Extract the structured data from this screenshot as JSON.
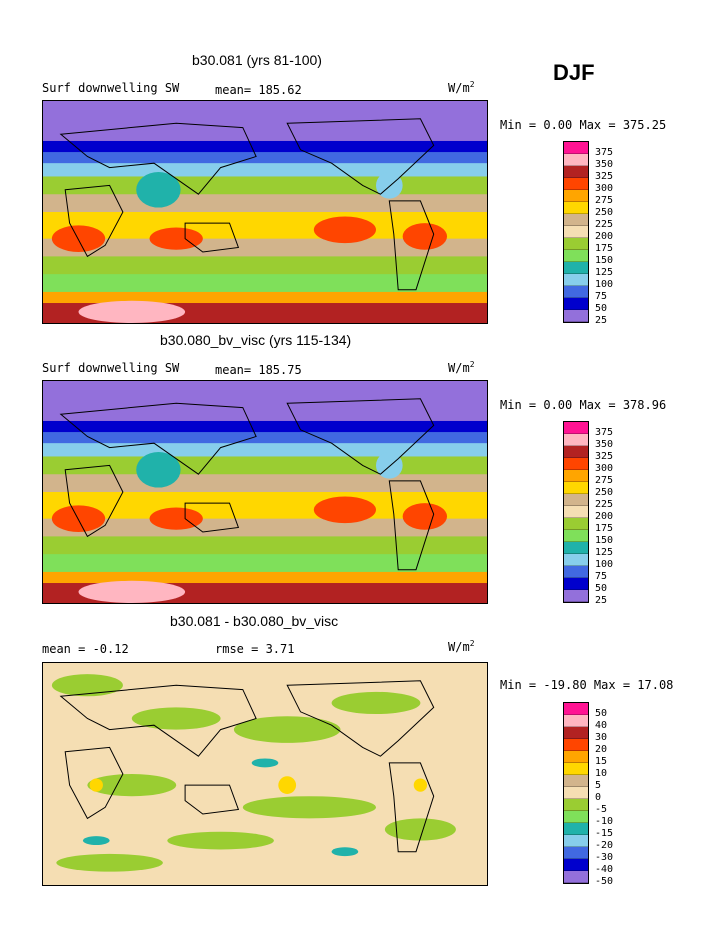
{
  "season": "DJF",
  "units_symbol": "W/m",
  "units_exp": "2",
  "panels": [
    {
      "title": "b30.081 (yrs 81-100)",
      "variable": "Surf downwelling SW",
      "stat1": "mean= 185.62",
      "stat2": "",
      "minmax": "Min =   0.00 Max = 375.25",
      "legend_labels": [
        "375",
        "350",
        "325",
        "300",
        "275",
        "250",
        "225",
        "200",
        "175",
        "150",
        "125",
        "100",
        "75",
        "50",
        "25"
      ],
      "legend_colors": [
        "#ff1493",
        "#ffb6c1",
        "#b22222",
        "#ff4500",
        "#ffa500",
        "#ffd700",
        "#d2b48c",
        "#f5deb3",
        "#9acd32",
        "#7fe05a",
        "#20b2aa",
        "#87ceeb",
        "#4169e1",
        "#0000cd",
        "#9370db"
      ]
    },
    {
      "title": "b30.080_bv_visc (yrs 115-134)",
      "variable": "Surf downwelling SW",
      "stat1": "mean= 185.75",
      "stat2": "",
      "minmax": "Min =   0.00 Max = 378.96",
      "legend_labels": [
        "375",
        "350",
        "325",
        "300",
        "275",
        "250",
        "225",
        "200",
        "175",
        "150",
        "125",
        "100",
        "75",
        "50",
        "25"
      ],
      "legend_colors": [
        "#ff1493",
        "#ffb6c1",
        "#b22222",
        "#ff4500",
        "#ffa500",
        "#ffd700",
        "#d2b48c",
        "#f5deb3",
        "#9acd32",
        "#7fe05a",
        "#20b2aa",
        "#87ceeb",
        "#4169e1",
        "#0000cd",
        "#9370db"
      ]
    },
    {
      "title": "b30.081 - b30.080_bv_visc",
      "variable": "mean =   -0.12",
      "stat1": "rmse =    3.71",
      "stat2": "",
      "minmax": "Min = -19.80 Max =  17.08",
      "legend_labels": [
        "50",
        "40",
        "30",
        "20",
        "15",
        "10",
        "5",
        "0",
        "-5",
        "-10",
        "-15",
        "-20",
        "-30",
        "-40",
        "-50"
      ],
      "legend_colors": [
        "#ff1493",
        "#ffb6c1",
        "#b22222",
        "#ff4500",
        "#ffa500",
        "#ffd700",
        "#d2b48c",
        "#f5deb3",
        "#9acd32",
        "#7fe05a",
        "#20b2aa",
        "#87ceeb",
        "#4169e1",
        "#0000cd",
        "#9370db"
      ]
    }
  ]
}
